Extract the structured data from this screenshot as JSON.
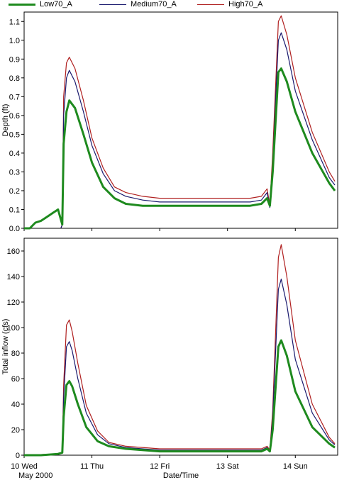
{
  "legend": [
    {
      "name": "Low70_A",
      "color": "#1e8a1e"
    },
    {
      "name": "Medium70_A",
      "color": "#1a1a6e"
    },
    {
      "name": "High70_A",
      "color": "#b02020"
    }
  ],
  "chart_data": [
    {
      "type": "line",
      "ylabel": "Depth (ft)",
      "xlabel": "Date/Time",
      "xlim": [
        "2000-05-10T00:00",
        "2000-05-14T15:00"
      ],
      "ylim": [
        0,
        1.15
      ],
      "yticks": [
        0.0,
        0.1,
        0.2,
        0.3,
        0.4,
        0.5,
        0.6,
        0.7,
        0.8,
        0.9,
        1.0,
        1.1
      ],
      "grid": false,
      "series": [
        {
          "name": "Low70_A",
          "color": "#1e8a1e",
          "x": [
            "2000-05-10T00:00",
            "2000-05-10T02:00",
            "2000-05-10T04:00",
            "2000-05-10T06:00",
            "2000-05-10T08:00",
            "2000-05-10T10:00",
            "2000-05-10T12:00",
            "2000-05-10T13:30",
            "2000-05-10T14:00",
            "2000-05-10T15:00",
            "2000-05-10T16:00",
            "2000-05-10T18:00",
            "2000-05-10T21:00",
            "2000-05-11T00:00",
            "2000-05-11T04:00",
            "2000-05-11T08:00",
            "2000-05-11T12:00",
            "2000-05-11T18:00",
            "2000-05-12T00:00",
            "2000-05-12T12:00",
            "2000-05-13T00:00",
            "2000-05-13T08:00",
            "2000-05-13T12:00",
            "2000-05-13T14:00",
            "2000-05-13T15:00",
            "2000-05-13T16:00",
            "2000-05-13T18:00",
            "2000-05-13T19:00",
            "2000-05-13T21:00",
            "2000-05-14T00:00",
            "2000-05-14T06:00",
            "2000-05-14T12:00",
            "2000-05-14T14:00"
          ],
          "y": [
            0.0,
            0.0,
            0.03,
            0.04,
            0.06,
            0.08,
            0.1,
            0.02,
            0.45,
            0.62,
            0.68,
            0.64,
            0.5,
            0.35,
            0.22,
            0.16,
            0.13,
            0.12,
            0.12,
            0.12,
            0.12,
            0.12,
            0.13,
            0.16,
            0.12,
            0.3,
            0.83,
            0.85,
            0.78,
            0.62,
            0.4,
            0.24,
            0.2
          ]
        },
        {
          "name": "Medium70_A",
          "color": "#1a1a6e",
          "x": [
            "2000-05-10T13:00",
            "2000-05-10T13:30",
            "2000-05-10T14:00",
            "2000-05-10T15:00",
            "2000-05-10T16:00",
            "2000-05-10T18:00",
            "2000-05-10T21:00",
            "2000-05-11T00:00",
            "2000-05-11T04:00",
            "2000-05-11T08:00",
            "2000-05-11T12:00",
            "2000-05-11T18:00",
            "2000-05-12T00:00",
            "2000-05-12T12:00",
            "2000-05-13T00:00",
            "2000-05-13T08:00",
            "2000-05-13T12:00",
            "2000-05-13T14:00",
            "2000-05-13T15:00",
            "2000-05-13T16:00",
            "2000-05-13T18:00",
            "2000-05-13T19:00",
            "2000-05-13T21:00",
            "2000-05-14T00:00",
            "2000-05-14T06:00",
            "2000-05-14T12:00",
            "2000-05-14T14:00"
          ],
          "y": [
            0.0,
            0.02,
            0.6,
            0.8,
            0.84,
            0.78,
            0.62,
            0.44,
            0.29,
            0.2,
            0.17,
            0.15,
            0.14,
            0.14,
            0.14,
            0.14,
            0.15,
            0.19,
            0.11,
            0.35,
            1.0,
            1.04,
            0.95,
            0.73,
            0.47,
            0.27,
            0.23
          ]
        },
        {
          "name": "High70_A",
          "color": "#b02020",
          "x": [
            "2000-05-10T13:00",
            "2000-05-10T13:30",
            "2000-05-10T14:00",
            "2000-05-10T15:00",
            "2000-05-10T16:00",
            "2000-05-10T18:00",
            "2000-05-10T21:00",
            "2000-05-11T00:00",
            "2000-05-11T04:00",
            "2000-05-11T08:00",
            "2000-05-11T12:00",
            "2000-05-11T18:00",
            "2000-05-12T00:00",
            "2000-05-12T12:00",
            "2000-05-13T00:00",
            "2000-05-13T08:00",
            "2000-05-13T12:00",
            "2000-05-13T14:00",
            "2000-05-13T15:00",
            "2000-05-13T16:00",
            "2000-05-13T18:00",
            "2000-05-13T19:00",
            "2000-05-13T21:00",
            "2000-05-14T00:00",
            "2000-05-14T06:00",
            "2000-05-14T12:00",
            "2000-05-14T14:00"
          ],
          "y": [
            0.0,
            0.02,
            0.7,
            0.88,
            0.91,
            0.85,
            0.68,
            0.48,
            0.32,
            0.22,
            0.19,
            0.17,
            0.16,
            0.16,
            0.16,
            0.16,
            0.17,
            0.21,
            0.12,
            0.4,
            1.1,
            1.13,
            1.03,
            0.8,
            0.51,
            0.3,
            0.25
          ]
        }
      ]
    },
    {
      "type": "line",
      "ylabel": "Total inflow (cfs)",
      "xlabel": "Date/Time",
      "xlim": [
        "2000-05-10T00:00",
        "2000-05-14T15:00"
      ],
      "ylim": [
        0,
        170
      ],
      "yticks": [
        0,
        20,
        40,
        60,
        80,
        100,
        120,
        140,
        160
      ],
      "grid": false,
      "series": [
        {
          "name": "Low70_A",
          "color": "#1e8a1e",
          "x": [
            "2000-05-10T00:00",
            "2000-05-10T06:00",
            "2000-05-10T12:00",
            "2000-05-10T13:30",
            "2000-05-10T14:00",
            "2000-05-10T15:00",
            "2000-05-10T16:00",
            "2000-05-10T17:00",
            "2000-05-10T19:00",
            "2000-05-10T22:00",
            "2000-05-11T02:00",
            "2000-05-11T06:00",
            "2000-05-11T12:00",
            "2000-05-12T00:00",
            "2000-05-12T12:00",
            "2000-05-13T00:00",
            "2000-05-13T12:00",
            "2000-05-13T14:00",
            "2000-05-13T15:00",
            "2000-05-13T16:00",
            "2000-05-13T18:00",
            "2000-05-13T19:00",
            "2000-05-13T21:00",
            "2000-05-14T00:00",
            "2000-05-14T06:00",
            "2000-05-14T12:00",
            "2000-05-14T14:00"
          ],
          "y": [
            0,
            0,
            1,
            2,
            30,
            55,
            58,
            54,
            40,
            22,
            11,
            7,
            5,
            3,
            3,
            3,
            3,
            5,
            3,
            20,
            85,
            90,
            78,
            50,
            22,
            9,
            6
          ]
        },
        {
          "name": "Medium70_A",
          "color": "#1a1a6e",
          "x": [
            "2000-05-10T00:00",
            "2000-05-10T12:00",
            "2000-05-10T13:30",
            "2000-05-10T14:00",
            "2000-05-10T15:00",
            "2000-05-10T16:00",
            "2000-05-10T17:00",
            "2000-05-10T19:00",
            "2000-05-10T22:00",
            "2000-05-11T02:00",
            "2000-05-11T06:00",
            "2000-05-11T12:00",
            "2000-05-12T00:00",
            "2000-05-12T12:00",
            "2000-05-13T00:00",
            "2000-05-13T12:00",
            "2000-05-13T14:00",
            "2000-05-13T15:00",
            "2000-05-13T16:00",
            "2000-05-13T18:00",
            "2000-05-13T19:00",
            "2000-05-13T21:00",
            "2000-05-14T00:00",
            "2000-05-14T06:00",
            "2000-05-14T12:00",
            "2000-05-14T14:00"
          ],
          "y": [
            0,
            1,
            2,
            45,
            85,
            89,
            82,
            60,
            33,
            16,
            9,
            6,
            4,
            4,
            4,
            4,
            6,
            3,
            30,
            130,
            138,
            118,
            75,
            33,
            12,
            8
          ]
        },
        {
          "name": "High70_A",
          "color": "#b02020",
          "x": [
            "2000-05-10T00:00",
            "2000-05-10T12:00",
            "2000-05-10T13:30",
            "2000-05-10T14:00",
            "2000-05-10T15:00",
            "2000-05-10T16:00",
            "2000-05-10T17:00",
            "2000-05-10T19:00",
            "2000-05-10T22:00",
            "2000-05-11T02:00",
            "2000-05-11T06:00",
            "2000-05-11T12:00",
            "2000-05-12T00:00",
            "2000-05-12T12:00",
            "2000-05-13T00:00",
            "2000-05-13T12:00",
            "2000-05-13T14:00",
            "2000-05-13T15:00",
            "2000-05-13T16:00",
            "2000-05-13T18:00",
            "2000-05-13T19:00",
            "2000-05-13T21:00",
            "2000-05-14T00:00",
            "2000-05-14T06:00",
            "2000-05-14T12:00",
            "2000-05-14T14:00"
          ],
          "y": [
            0,
            1,
            2,
            55,
            102,
            106,
            97,
            72,
            39,
            19,
            10,
            7,
            5,
            5,
            5,
            5,
            7,
            4,
            35,
            155,
            165,
            140,
            90,
            40,
            14,
            9
          ]
        }
      ]
    }
  ],
  "x_ticks": [
    {
      "at": "2000-05-10T00:00",
      "label": "10 Wed"
    },
    {
      "at": "2000-05-11T00:00",
      "label": "11 Thu"
    },
    {
      "at": "2000-05-12T00:00",
      "label": "12 Fri"
    },
    {
      "at": "2000-05-13T00:00",
      "label": "13 Sat"
    },
    {
      "at": "2000-05-14T00:00",
      "label": "14 Sun"
    }
  ],
  "x_sublabel": "May 2000",
  "x_title": "Date/Time"
}
